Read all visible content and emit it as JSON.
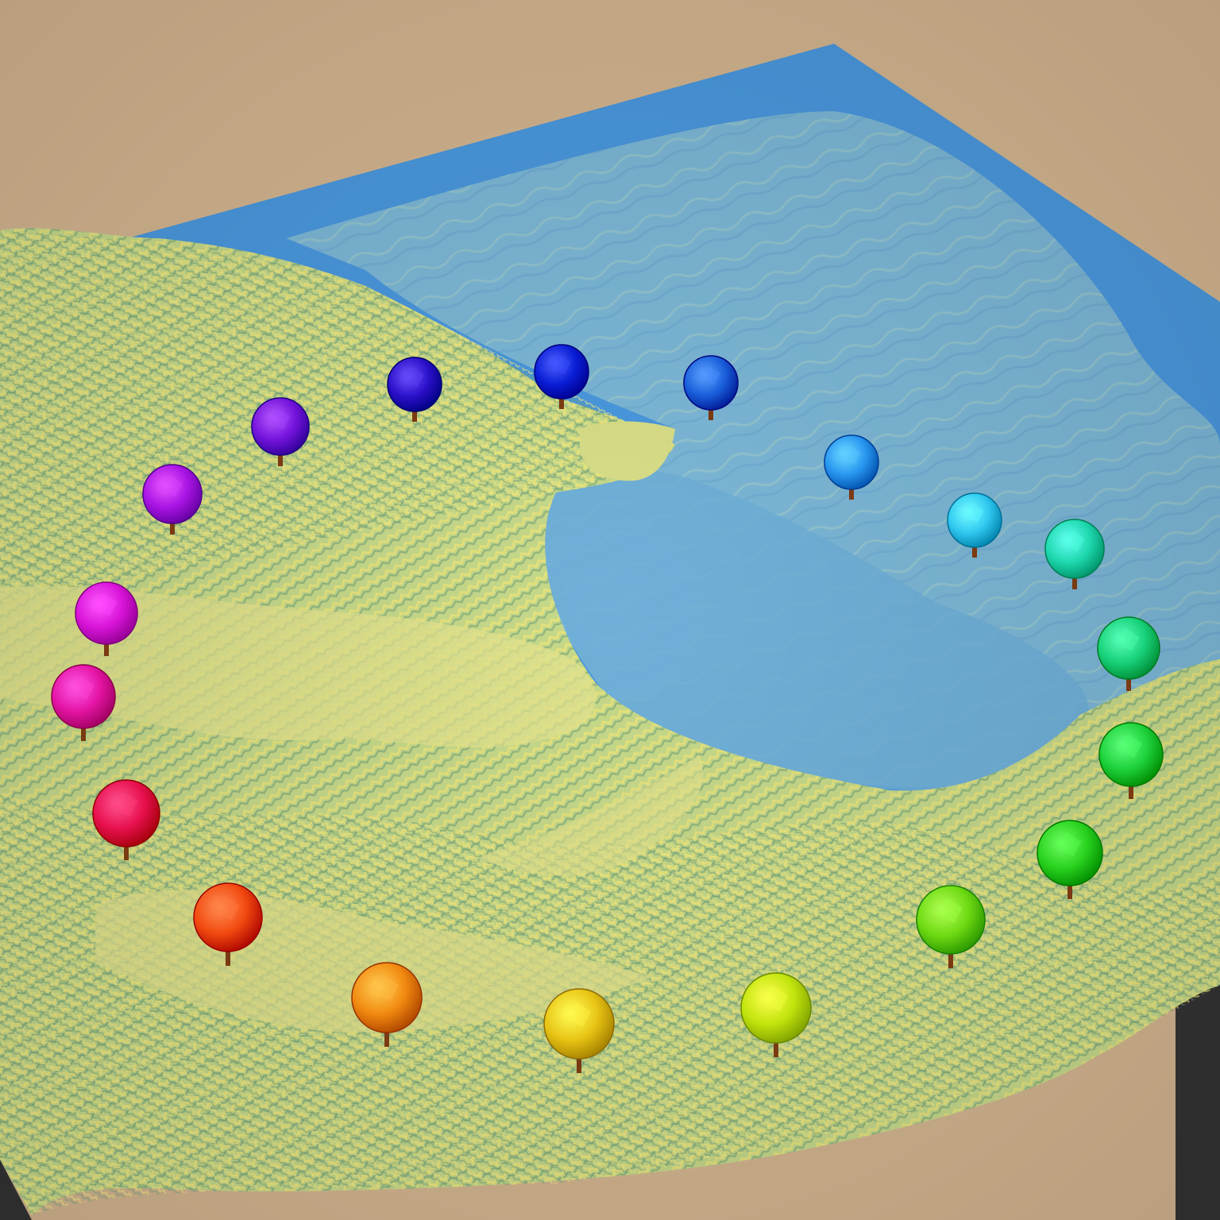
{
  "scene": {
    "colors": {
      "background": "#D3B590",
      "water": "#4A98DE",
      "shallow_water": "#7CB7D6",
      "land_light": "#E2E38E",
      "land_mid": "#C6D98A",
      "land_dark": "#7FAE7E",
      "ridge_highlight": "#F0E678",
      "base_side": "#333333",
      "trunk": "#7A3A12"
    },
    "markers": [
      {
        "name": "marker-01",
        "color": "#2A10C8"
      },
      {
        "name": "marker-02",
        "color": "#0A1ED6"
      },
      {
        "name": "marker-03",
        "color": "#1A5FDB"
      },
      {
        "name": "marker-04",
        "color": "#2896F0"
      },
      {
        "name": "marker-05",
        "color": "#30C8F0"
      },
      {
        "name": "marker-06",
        "color": "#1ED8AE"
      },
      {
        "name": "marker-07",
        "color": "#18D27A"
      },
      {
        "name": "marker-08",
        "color": "#1ED23C"
      },
      {
        "name": "marker-09",
        "color": "#2AD21E"
      },
      {
        "name": "marker-10",
        "color": "#6EDA12"
      },
      {
        "name": "marker-11",
        "color": "#C2E40C"
      },
      {
        "name": "marker-12",
        "color": "#E8C414"
      },
      {
        "name": "marker-13",
        "color": "#F28A10"
      },
      {
        "name": "marker-14",
        "color": "#F24A10"
      },
      {
        "name": "marker-15",
        "color": "#E8104E"
      },
      {
        "name": "marker-16",
        "color": "#E414A4"
      },
      {
        "name": "marker-17",
        "color": "#D814D8"
      },
      {
        "name": "marker-18",
        "color": "#A814E4"
      },
      {
        "name": "marker-19",
        "color": "#7414DC"
      }
    ]
  }
}
